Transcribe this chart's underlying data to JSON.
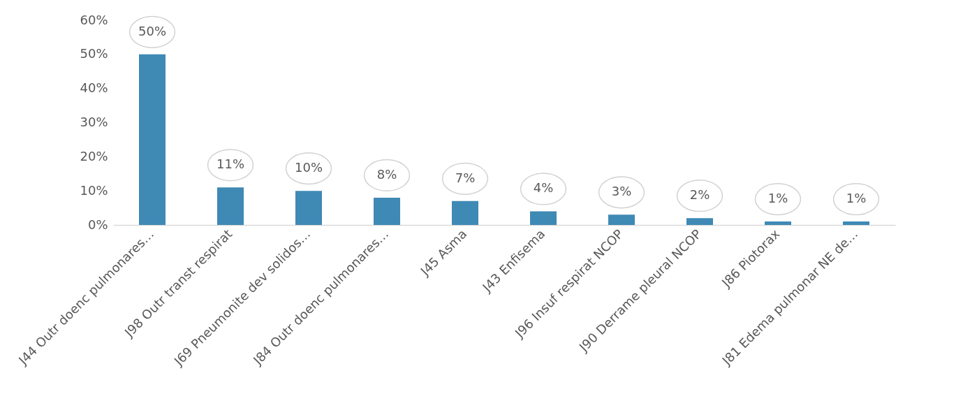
{
  "chart_data": {
    "type": "bar",
    "categories": [
      "J44  Outr doenc pulmonares…",
      "J98  Outr transt respirat",
      "J69  Pneumonite dev solidos…",
      "J84  Outr doenc pulmonares…",
      "J45  Asma",
      "J43  Enfisema",
      "J96  Insuf respirat NCOP",
      "J90  Derrame pleural NCOP",
      "J86  Piotorax",
      "J81  Edema pulmonar NE de…"
    ],
    "values": [
      50,
      11,
      10,
      8,
      7,
      4,
      3,
      2,
      1,
      1
    ],
    "color": "#3f89b5",
    "ylim": [
      0,
      60
    ],
    "yticks": [
      {
        "value": 0,
        "label": "0%"
      },
      {
        "value": 10,
        "label": "10%"
      },
      {
        "value": 20,
        "label": "20%"
      },
      {
        "value": 30,
        "label": "30%"
      },
      {
        "value": 40,
        "label": "40%"
      },
      {
        "value": 50,
        "label": "50%"
      },
      {
        "value": 60,
        "label": "60%"
      }
    ],
    "value_labels": [
      "50%",
      "11%",
      "10%",
      "8%",
      "7%",
      "4%",
      "3%",
      "2%",
      "1%",
      "1%"
    ],
    "grid": false
  }
}
